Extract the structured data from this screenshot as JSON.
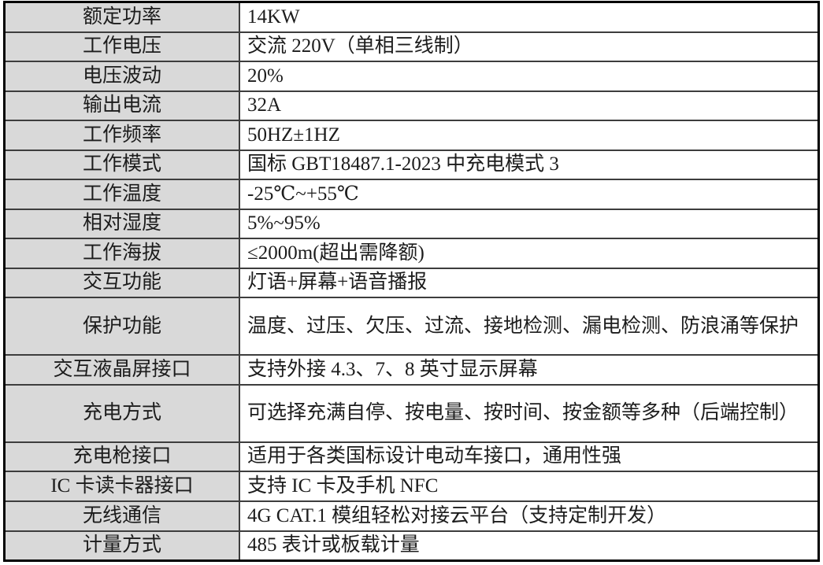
{
  "table": {
    "rows": [
      {
        "label": "额定功率",
        "value": "14KW",
        "tall": false
      },
      {
        "label": "工作电压",
        "value": "交流 220V（单相三线制）",
        "tall": false
      },
      {
        "label": "电压波动",
        "value": "20%",
        "tall": false
      },
      {
        "label": "输出电流",
        "value": "32A",
        "tall": false
      },
      {
        "label": "工作频率",
        "value": "50HZ±1HZ",
        "tall": false
      },
      {
        "label": "工作模式",
        "value": "国标 GBT18487.1-2023 中充电模式 3",
        "tall": false
      },
      {
        "label": "工作温度",
        "value": "-25℃~+55℃",
        "tall": false
      },
      {
        "label": "相对湿度",
        "value": "5%~95%",
        "tall": false
      },
      {
        "label": "工作海拔",
        "value": "≤2000m(超出需降额)",
        "tall": false
      },
      {
        "label": "交互功能",
        "value": "灯语+屏幕+语音播报",
        "tall": false
      },
      {
        "label": "保护功能",
        "value": "温度、过压、欠压、过流、接地检测、漏电检测、防浪涌等保护",
        "tall": true
      },
      {
        "label": "交互液晶屏接口",
        "value": "支持外接 4.3、7、8 英寸显示屏幕",
        "tall": false
      },
      {
        "label": "充电方式",
        "value": "可选择充满自停、按电量、按时间、按金额等多种（后端控制）",
        "tall": true
      },
      {
        "label": "充电枪接口",
        "value": "适用于各类国标设计电动车接口，通用性强",
        "tall": false
      },
      {
        "label": "IC 卡读卡器接口",
        "value": "支持 IC 卡及手机 NFC",
        "tall": false
      },
      {
        "label": "无线通信",
        "value": "4G CAT.1 模组轻松对接云平台（支持定制开发）",
        "tall": false
      },
      {
        "label": "计量方式",
        "value": "485 表计或板载计量",
        "tall": false
      }
    ],
    "colors": {
      "label_column_bg": "#d9d9d9",
      "value_column_bg": "#ffffff",
      "outer_border": "#000000",
      "inner_border": "#3d3d3d"
    }
  }
}
